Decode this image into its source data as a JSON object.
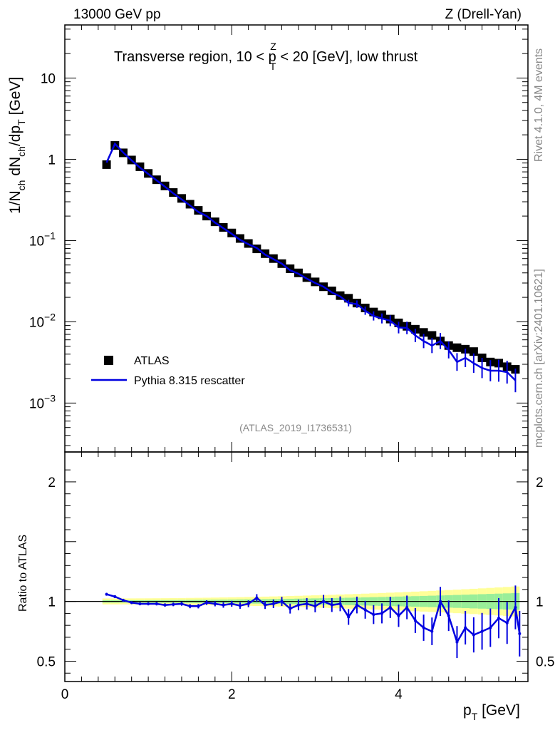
{
  "header": {
    "left": "13000 GeV pp",
    "right": "Z (Drell-Yan)",
    "title": "Transverse region, 10 < p",
    "title_sup": "Z",
    "title_sub": "T",
    "title_rest": " < 20 [GeV], low thrust",
    "side_top": "Rivet 4.1.0,  4M events",
    "side_bottom": "mcplots.cern.ch [arXiv:2401.10621]",
    "analysis_id": "(ATLAS_2019_I1736531)"
  },
  "legend": {
    "data_label": "ATLAS",
    "mc_label": "Pythia 8.315 rescatter"
  },
  "axes": {
    "y_main_label": "1/N",
    "y_main_sub1": "ch",
    "y_main_mid": " dN",
    "y_main_sub2": "ch",
    "y_main_mid2": "/dp",
    "y_main_sub3": "T",
    "y_main_unit": " [GeV]",
    "y_ratio_label": "Ratio to ATLAS",
    "x_label": "p",
    "x_sub": "T",
    "x_unit": " [GeV]",
    "x_ticks": [
      "0",
      "2",
      "4"
    ],
    "y_main_ticks": [
      {
        "base": "10",
        "exp": "−3",
        "value": 0.001
      },
      {
        "base": "10",
        "exp": "−2",
        "value": 0.01
      },
      {
        "base": "10",
        "exp": "−1",
        "value": 0.1
      },
      {
        "base": "1",
        "exp": "",
        "value": 1
      },
      {
        "base": "10",
        "exp": "",
        "value": 10
      }
    ],
    "y_ratio_ticks": [
      "0.5",
      "1",
      "2"
    ]
  },
  "colors": {
    "data": "#000000",
    "mc": "#0000e0",
    "band_inner": "#99ee99",
    "band_outer": "#ffff99"
  },
  "chart_data": {
    "type": "scatter",
    "title": "Transverse region, 10 < pT^Z < 20 [GeV], low thrust",
    "xlabel": "pT [GeV]",
    "ylabel": "1/Nch dNch/dpT [GeV]",
    "xlim": [
      0,
      5.55
    ],
    "ylim": [
      0.00025,
      45
    ],
    "yscale": "log",
    "ratio_ylim": [
      0.33,
      2.25
    ],
    "x": [
      0.5,
      0.6,
      0.7,
      0.8,
      0.9,
      1.0,
      1.1,
      1.2,
      1.3,
      1.4,
      1.5,
      1.6,
      1.7,
      1.8,
      1.9,
      2.0,
      2.1,
      2.2,
      2.3,
      2.4,
      2.5,
      2.6,
      2.7,
      2.8,
      2.9,
      3.0,
      3.1,
      3.2,
      3.3,
      3.4,
      3.5,
      3.6,
      3.7,
      3.8,
      3.9,
      4.0,
      4.1,
      4.2,
      4.3,
      4.4,
      4.5,
      4.6,
      4.7,
      4.8,
      4.9,
      5.0,
      5.1,
      5.2,
      5.3,
      5.4
    ],
    "series": [
      {
        "name": "ATLAS",
        "values": [
          0.86,
          1.48,
          1.2,
          0.98,
          0.81,
          0.67,
          0.56,
          0.47,
          0.39,
          0.33,
          0.28,
          0.235,
          0.2,
          0.17,
          0.145,
          0.124,
          0.106,
          0.092,
          0.079,
          0.069,
          0.06,
          0.052,
          0.045,
          0.04,
          0.035,
          0.031,
          0.027,
          0.024,
          0.021,
          0.0195,
          0.017,
          0.0148,
          0.0132,
          0.0122,
          0.0108,
          0.0097,
          0.0088,
          0.0081,
          0.0074,
          0.0068,
          0.0058,
          0.0051,
          0.0048,
          0.0046,
          0.0043,
          0.0036,
          0.0032,
          0.0031,
          0.0028,
          0.0026
        ]
      },
      {
        "name": "Pythia 8.315 rescatter",
        "values": [
          0.91,
          1.55,
          1.21,
          0.97,
          0.79,
          0.66,
          0.55,
          0.46,
          0.38,
          0.32,
          0.27,
          0.225,
          0.2,
          0.166,
          0.142,
          0.121,
          0.102,
          0.09,
          0.081,
          0.067,
          0.059,
          0.052,
          0.043,
          0.039,
          0.034,
          0.03,
          0.027,
          0.023,
          0.0205,
          0.017,
          0.0165,
          0.0137,
          0.0118,
          0.011,
          0.0103,
          0.0085,
          0.0084,
          0.0068,
          0.0058,
          0.0051,
          0.0058,
          0.0045,
          0.0032,
          0.0036,
          0.0031,
          0.0027,
          0.0025,
          0.0025,
          0.0024,
          0.0019
        ]
      }
    ],
    "ratio": {
      "values": [
        1.06,
        1.04,
        1.01,
        0.99,
        0.98,
        0.98,
        0.98,
        0.97,
        0.975,
        0.98,
        0.96,
        0.96,
        0.99,
        0.98,
        0.97,
        0.98,
        0.965,
        0.98,
        1.03,
        0.97,
        0.98,
        1.0,
        0.94,
        0.97,
        0.98,
        0.96,
        1.0,
        0.97,
        0.98,
        0.87,
        0.97,
        0.93,
        0.89,
        0.9,
        0.95,
        0.88,
        0.95,
        0.84,
        0.78,
        0.75,
        1.0,
        0.88,
        0.66,
        0.78,
        0.72,
        0.75,
        0.78,
        0.86,
        0.82,
        0.95,
        0.73
      ],
      "x": [
        0.5,
        0.6,
        0.7,
        0.8,
        0.9,
        1.0,
        1.1,
        1.2,
        1.3,
        1.4,
        1.5,
        1.6,
        1.7,
        1.8,
        1.9,
        2.0,
        2.1,
        2.2,
        2.3,
        2.4,
        2.5,
        2.6,
        2.7,
        2.8,
        2.9,
        3.0,
        3.1,
        3.2,
        3.3,
        3.4,
        3.5,
        3.6,
        3.7,
        3.8,
        3.9,
        4.0,
        4.1,
        4.2,
        4.3,
        4.4,
        4.5,
        4.6,
        4.7,
        4.8,
        4.9,
        5.0,
        5.1,
        5.2,
        5.3,
        5.4,
        5.45
      ]
    }
  }
}
